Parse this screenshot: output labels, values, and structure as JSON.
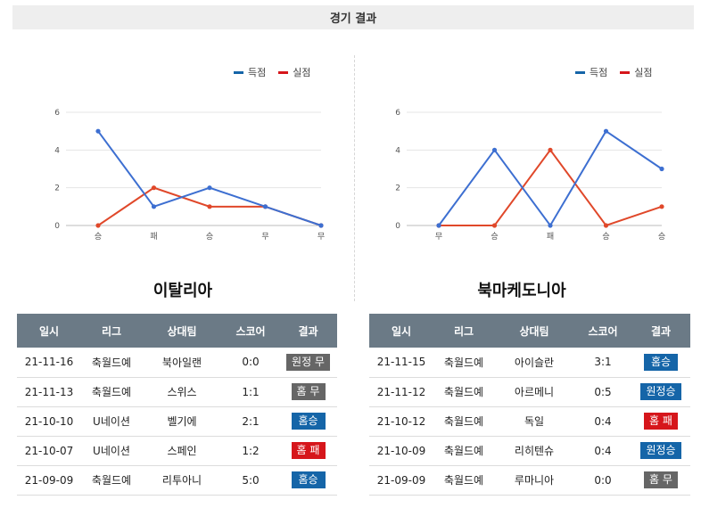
{
  "header": {
    "title": "경기 결과"
  },
  "legend": {
    "scored": "득점",
    "conceded": "실점"
  },
  "colors": {
    "scored": "#3d6fd1",
    "conceded": "#e0482a",
    "header_bg": "#6b7a86",
    "win": "#1565a8",
    "draw": "#666666",
    "loss": "#d6161b"
  },
  "columns": [
    "일시",
    "리그",
    "상대팀",
    "스코어",
    "결과"
  ],
  "teams": [
    {
      "name": "이탈리아",
      "chart_data": {
        "type": "line",
        "categories": [
          "승",
          "패",
          "승",
          "무",
          "무"
        ],
        "ylim": [
          0,
          6
        ],
        "yticks": [
          "0",
          "2",
          "4",
          "6"
        ],
        "series": [
          {
            "name": "득점",
            "values": [
              5,
              1,
              2,
              1,
              0
            ]
          },
          {
            "name": "실점",
            "values": [
              0,
              2,
              1,
              1,
              0
            ]
          }
        ]
      },
      "matches": [
        {
          "date": "21-11-16",
          "league": "축월드예",
          "opponent": "북아일랜",
          "score": "0:0",
          "result": "원정 무",
          "kind": "draw"
        },
        {
          "date": "21-11-13",
          "league": "축월드예",
          "opponent": "스위스",
          "score": "1:1",
          "result": "홈 무",
          "kind": "draw"
        },
        {
          "date": "21-10-10",
          "league": "U네이션",
          "opponent": "벨기에",
          "score": "2:1",
          "result": "홈승",
          "kind": "win"
        },
        {
          "date": "21-10-07",
          "league": "U네이션",
          "opponent": "스페인",
          "score": "1:2",
          "result": "홈 패",
          "kind": "loss"
        },
        {
          "date": "21-09-09",
          "league": "축월드예",
          "opponent": "리투아니",
          "score": "5:0",
          "result": "홈승",
          "kind": "win"
        }
      ]
    },
    {
      "name": "북마케도니아",
      "chart_data": {
        "type": "line",
        "categories": [
          "무",
          "승",
          "패",
          "승",
          "승"
        ],
        "ylim": [
          0,
          6
        ],
        "yticks": [
          "0",
          "2",
          "4",
          "6"
        ],
        "series": [
          {
            "name": "득점",
            "values": [
              0,
              4,
              0,
              5,
              3
            ]
          },
          {
            "name": "실점",
            "values": [
              0,
              0,
              4,
              0,
              1
            ]
          }
        ]
      },
      "matches": [
        {
          "date": "21-11-15",
          "league": "축월드예",
          "opponent": "아이슬란",
          "score": "3:1",
          "result": "홈승",
          "kind": "win"
        },
        {
          "date": "21-11-12",
          "league": "축월드예",
          "opponent": "아르메니",
          "score": "0:5",
          "result": "원정승",
          "kind": "win"
        },
        {
          "date": "21-10-12",
          "league": "축월드예",
          "opponent": "독일",
          "score": "0:4",
          "result": "홈 패",
          "kind": "loss"
        },
        {
          "date": "21-10-09",
          "league": "축월드예",
          "opponent": "리히텐슈",
          "score": "0:4",
          "result": "원정승",
          "kind": "win"
        },
        {
          "date": "21-09-09",
          "league": "축월드예",
          "opponent": "루마니아",
          "score": "0:0",
          "result": "홈 무",
          "kind": "draw"
        }
      ]
    }
  ]
}
